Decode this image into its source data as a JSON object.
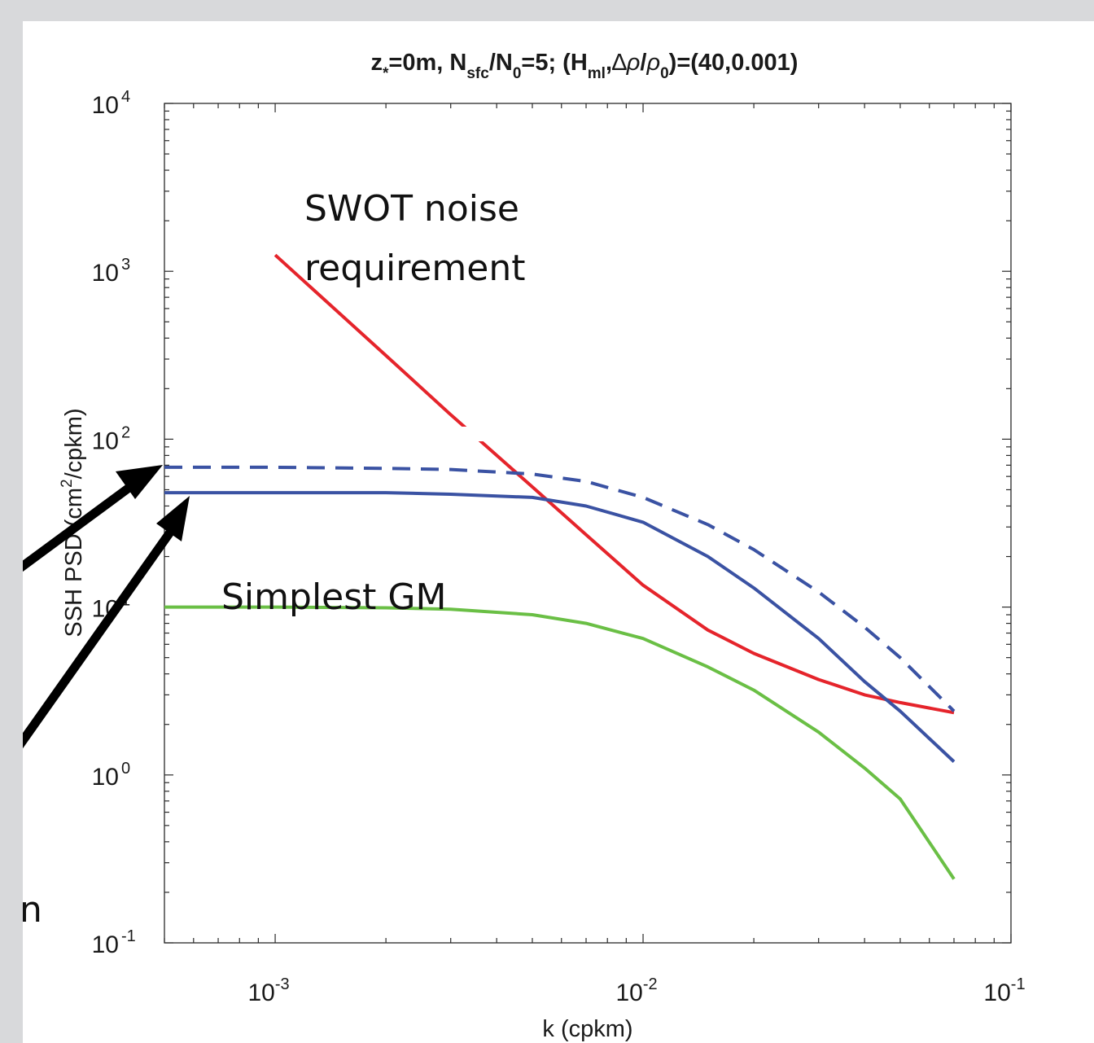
{
  "chart_data": {
    "type": "line",
    "title_parts": {
      "z": "z",
      "z_sub": "*",
      "z_val": "=0m, N",
      "n_sub": "sfc",
      "n_div": "/N",
      "n0_sub": "0",
      "n_val": "=5; (H",
      "h_sub": "ml",
      "h_comma": ",",
      "delta": "∆",
      "rho": "ρ",
      "rho_div": "/",
      "rho0": "ρ",
      "rho0_sub": "0",
      "close": ")=(40,0.001)"
    },
    "xlabel": "k (cpkm)",
    "ylabel_parts": {
      "a": "SSH PSD (cm",
      "sup": "2",
      "b": "/cpkm)"
    },
    "xscale": "log",
    "yscale": "log",
    "xlim": [
      0.0005,
      0.1
    ],
    "ylim": [
      0.1,
      10000
    ],
    "xticks": [
      {
        "value": 0.001,
        "base": "10",
        "exp": "-3"
      },
      {
        "value": 0.01,
        "base": "10",
        "exp": "-2"
      },
      {
        "value": 0.1,
        "base": "10",
        "exp": "-1"
      }
    ],
    "yticks": [
      {
        "value": 0.1,
        "base": "10",
        "exp": "-1"
      },
      {
        "value": 1,
        "base": "10",
        "exp": "0"
      },
      {
        "value": 10,
        "base": "10",
        "exp": "1"
      },
      {
        "value": 100,
        "base": "10",
        "exp": "2"
      },
      {
        "value": 1000,
        "base": "10",
        "exp": "3"
      },
      {
        "value": 10000,
        "base": "10",
        "exp": "4"
      }
    ],
    "grid": false,
    "series": [
      {
        "color": "#e5242b",
        "dash": "solid",
        "points": [
          [
            0.001,
            1250
          ],
          [
            0.002,
            315
          ],
          [
            0.003,
            140
          ],
          [
            0.005,
            52
          ],
          [
            0.007,
            27
          ],
          [
            0.01,
            13.5
          ],
          [
            0.015,
            7.3
          ],
          [
            0.02,
            5.3
          ],
          [
            0.03,
            3.7
          ],
          [
            0.04,
            3.0
          ],
          [
            0.05,
            2.7
          ],
          [
            0.07,
            2.35
          ]
        ]
      },
      {
        "color": "#3a52a3",
        "dash": "solid",
        "points": [
          [
            0.0005,
            48
          ],
          [
            0.001,
            48
          ],
          [
            0.002,
            48
          ],
          [
            0.003,
            47
          ],
          [
            0.005,
            45
          ],
          [
            0.007,
            40
          ],
          [
            0.01,
            32
          ],
          [
            0.015,
            20
          ],
          [
            0.02,
            13
          ],
          [
            0.03,
            6.5
          ],
          [
            0.04,
            3.6
          ],
          [
            0.05,
            2.4
          ],
          [
            0.07,
            1.2
          ]
        ]
      },
      {
        "color": "#3a52a3",
        "dash": "dashed",
        "points": [
          [
            0.0005,
            68
          ],
          [
            0.001,
            68
          ],
          [
            0.002,
            67
          ],
          [
            0.003,
            66
          ],
          [
            0.005,
            62
          ],
          [
            0.007,
            56
          ],
          [
            0.01,
            45
          ],
          [
            0.015,
            31
          ],
          [
            0.02,
            22
          ],
          [
            0.03,
            12.3
          ],
          [
            0.04,
            7.6
          ],
          [
            0.05,
            5.0
          ],
          [
            0.07,
            2.4
          ]
        ]
      },
      {
        "color": "#6abf45",
        "dash": "solid",
        "points": [
          [
            0.0005,
            10
          ],
          [
            0.001,
            10
          ],
          [
            0.002,
            9.9
          ],
          [
            0.003,
            9.7
          ],
          [
            0.005,
            9.0
          ],
          [
            0.007,
            8.0
          ],
          [
            0.01,
            6.5
          ],
          [
            0.015,
            4.4
          ],
          [
            0.02,
            3.2
          ],
          [
            0.03,
            1.8
          ],
          [
            0.04,
            1.1
          ],
          [
            0.05,
            0.72
          ],
          [
            0.07,
            0.24
          ]
        ]
      }
    ],
    "annotations": {
      "swot_line1": "SWOT noise",
      "swot_line2": "requirement",
      "gm": "Simplest GM",
      "fragment": "n"
    }
  }
}
